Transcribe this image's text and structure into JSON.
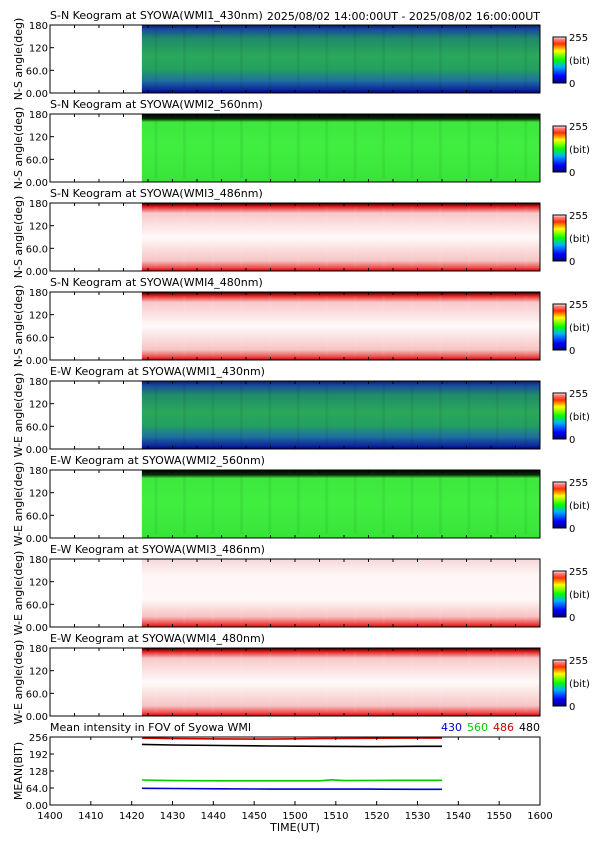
{
  "header": {
    "time_range": "2025/08/02 14:00:00UT - 2025/08/02 16:00:00UT"
  },
  "colorbar": {
    "max_label": "255",
    "unit_label": "(bit)",
    "min_label": "0"
  },
  "chart_data": [
    {
      "type": "heatmap",
      "title": "S-N Keogram at SYOWA(WMI1_430nm)",
      "ylabel": "N-S angle(deg)",
      "yticks": [
        "180",
        "120",
        "60.0",
        "0.00"
      ],
      "ylim": [
        0,
        180
      ],
      "xlim": [
        1400,
        1600
      ],
      "data_start": 1437.5,
      "colormap": "blue-green",
      "colorbar_range": [
        0,
        255
      ]
    },
    {
      "type": "heatmap",
      "title": "S-N Keogram at SYOWA(WMI2_560nm)",
      "ylabel": "N-S angle(deg)",
      "yticks": [
        "180",
        "120",
        "60.0",
        "0.00"
      ],
      "ylim": [
        0,
        180
      ],
      "xlim": [
        1400,
        1600
      ],
      "data_start": 1437.5,
      "colormap": "green",
      "colorbar_range": [
        0,
        255
      ]
    },
    {
      "type": "heatmap",
      "title": "S-N Keogram at SYOWA(WMI3_486nm)",
      "ylabel": "N-S angle(deg)",
      "yticks": [
        "180",
        "120",
        "60.0",
        "0.00"
      ],
      "ylim": [
        0,
        180
      ],
      "xlim": [
        1400,
        1600
      ],
      "data_start": 1437.5,
      "colormap": "white-red-edges",
      "colorbar_range": [
        0,
        255
      ]
    },
    {
      "type": "heatmap",
      "title": "S-N Keogram at SYOWA(WMI4_480nm)",
      "ylabel": "N-S angle(deg)",
      "yticks": [
        "180",
        "120",
        "60.0",
        "0.00"
      ],
      "ylim": [
        0,
        180
      ],
      "xlim": [
        1400,
        1600
      ],
      "data_start": 1437.5,
      "colormap": "white-red-edges",
      "colorbar_range": [
        0,
        255
      ]
    },
    {
      "type": "heatmap",
      "title": "E-W Keogram at SYOWA(WMI1_430nm)",
      "ylabel": "W-E angle(deg)",
      "yticks": [
        "180",
        "120",
        "60.0",
        "0.00"
      ],
      "ylim": [
        0,
        180
      ],
      "xlim": [
        1400,
        1600
      ],
      "data_start": 1437.5,
      "colormap": "blue-green",
      "colorbar_range": [
        0,
        255
      ]
    },
    {
      "type": "heatmap",
      "title": "E-W Keogram at SYOWA(WMI2_560nm)",
      "ylabel": "W-E angle(deg)",
      "yticks": [
        "180",
        "120",
        "60.0",
        "0.00"
      ],
      "ylim": [
        0,
        180
      ],
      "xlim": [
        1400,
        1600
      ],
      "data_start": 1437.5,
      "colormap": "green",
      "colorbar_range": [
        0,
        255
      ]
    },
    {
      "type": "heatmap",
      "title": "E-W Keogram at SYOWA(WMI3_486nm)",
      "ylabel": "W-E angle(deg)",
      "yticks": [
        "180",
        "120",
        "60.0",
        "0.00"
      ],
      "ylim": [
        0,
        180
      ],
      "xlim": [
        1400,
        1600
      ],
      "data_start": 1437.5,
      "colormap": "white-red-bottom",
      "colorbar_range": [
        0,
        255
      ]
    },
    {
      "type": "heatmap",
      "title": "E-W Keogram at SYOWA(WMI4_480nm)",
      "ylabel": "W-E angle(deg)",
      "yticks": [
        "180",
        "120",
        "60.0",
        "0.00"
      ],
      "ylim": [
        0,
        180
      ],
      "xlim": [
        1400,
        1600
      ],
      "data_start": 1437.5,
      "colormap": "white-red-edges",
      "colorbar_range": [
        0,
        255
      ]
    },
    {
      "type": "line",
      "title": "Mean intensity in FOV of Syowa WMI",
      "ylabel": "MEAN(BIT)",
      "xlabel": "TIME(UT)",
      "yticks": [
        "256",
        "192",
        "128",
        "64.0",
        "0.00"
      ],
      "ylim": [
        0,
        256
      ],
      "xlim": [
        1400,
        1600
      ],
      "xticks": [
        "1400",
        "1410",
        "1420",
        "1430",
        "1440",
        "1450",
        "1500",
        "1510",
        "1520",
        "1530",
        "1540",
        "1550",
        "1600"
      ],
      "series": [
        {
          "name": "430",
          "color": "#0000cc",
          "x": [
            1437.5,
            1450,
            1470,
            1490,
            1510,
            1530,
            1550,
            1560
          ],
          "y": [
            63,
            62,
            61,
            60,
            60,
            60,
            59,
            59
          ]
        },
        {
          "name": "560",
          "color": "#00cc00",
          "x": [
            1437.5,
            1450,
            1470,
            1490,
            1510,
            1515,
            1520,
            1540,
            1560
          ],
          "y": [
            94,
            92,
            91,
            91,
            91,
            95,
            92,
            93,
            93
          ]
        },
        {
          "name": "486",
          "color": "#cc0000",
          "x": [
            1437.5,
            1450,
            1470,
            1490,
            1510,
            1530,
            1550,
            1560
          ],
          "y": [
            252,
            250,
            249,
            248,
            250,
            251,
            252,
            252
          ]
        },
        {
          "name": "480",
          "color": "#000000",
          "x": [
            1437.5,
            1450,
            1470,
            1490,
            1510,
            1530,
            1550,
            1560
          ],
          "y": [
            228,
            226,
            224,
            222,
            221,
            220,
            221,
            221
          ]
        }
      ]
    }
  ]
}
